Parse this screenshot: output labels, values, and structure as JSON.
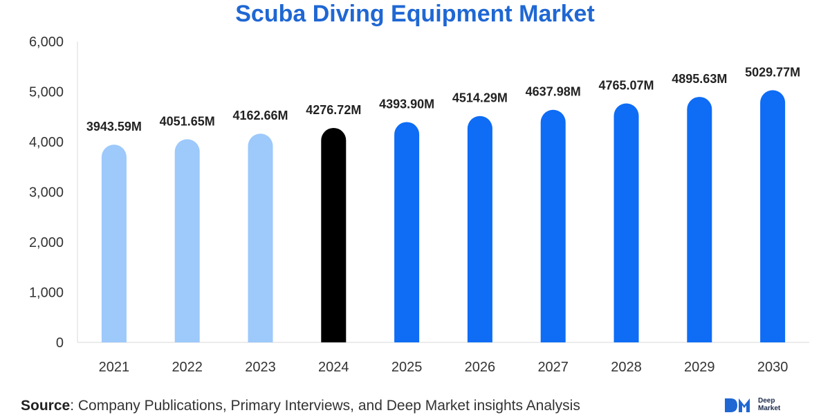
{
  "title": "Scuba Diving Equipment Market",
  "source": {
    "label": "Source",
    "text": ": Company Publications, Primary Interviews, and Deep Market insights Analysis"
  },
  "logo": {
    "line1": "Deep",
    "line2": "Market",
    "color": "#1f67d3"
  },
  "colors": {
    "historical": "#9dc9fb",
    "base_year": "#000000",
    "forecast": "#0e6cf5",
    "title": "#1f67d3"
  },
  "chart_data": {
    "type": "bar",
    "title": "Scuba Diving Equipment Market",
    "categories": [
      "2021",
      "2022",
      "2023",
      "2024",
      "2025",
      "2026",
      "2027",
      "2028",
      "2029",
      "2030"
    ],
    "values": [
      3943.59,
      4051.65,
      4162.66,
      4276.72,
      4393.9,
      4514.29,
      4637.98,
      4765.07,
      4895.63,
      5029.77
    ],
    "data_labels": [
      "3943.59M",
      "4051.65M",
      "4162.66M",
      "4276.72M",
      "4393.90M",
      "4514.29M",
      "4637.98M",
      "4765.07M",
      "4895.63M",
      "5029.77M"
    ],
    "bar_groups": [
      "historical",
      "historical",
      "historical",
      "base_year",
      "forecast",
      "forecast",
      "forecast",
      "forecast",
      "forecast",
      "forecast"
    ],
    "y_ticks": [
      "0",
      "1,000",
      "2,000",
      "3,000",
      "4,000",
      "5,000",
      "6,000"
    ],
    "ylim": [
      0,
      6000
    ],
    "xlabel": "",
    "ylabel": "",
    "grid": false,
    "legend": "none"
  }
}
